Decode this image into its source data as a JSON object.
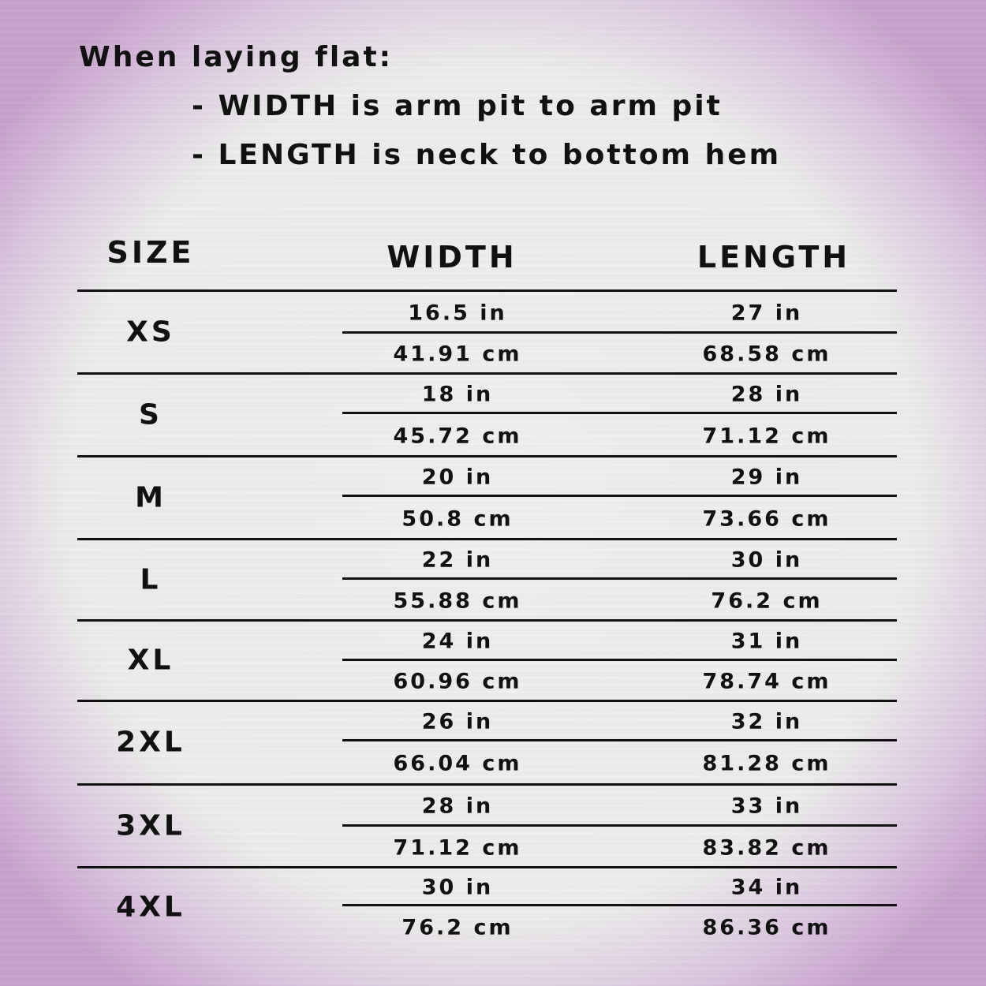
{
  "intro": {
    "title": "When laying flat:",
    "lines": [
      "- WIDTH is arm pit to arm pit",
      "- LENGTH is neck to bottom hem"
    ]
  },
  "table": {
    "headers": {
      "size": "SIZE",
      "width": "WIDTH",
      "length": "LENGTH"
    },
    "rows": [
      {
        "size": "XS",
        "width_in": "16.5 in",
        "width_cm": "41.91 cm",
        "length_in": "27 in",
        "length_cm": "68.58 cm"
      },
      {
        "size": "S",
        "width_in": "18 in",
        "width_cm": "45.72 cm",
        "length_in": "28 in",
        "length_cm": "71.12 cm"
      },
      {
        "size": "M",
        "width_in": "20 in",
        "width_cm": "50.8 cm",
        "length_in": "29 in",
        "length_cm": "73.66 cm"
      },
      {
        "size": "L",
        "width_in": "22 in",
        "width_cm": "55.88 cm",
        "length_in": "30 in",
        "length_cm": "76.2 cm"
      },
      {
        "size": "XL",
        "width_in": "24 in",
        "width_cm": "60.96 cm",
        "length_in": "31 in",
        "length_cm": "78.74 cm"
      },
      {
        "size": "2XL",
        "width_in": "26 in",
        "width_cm": "66.04 cm",
        "length_in": "32 in",
        "length_cm": "81.28 cm"
      },
      {
        "size": "3XL",
        "width_in": "28 in",
        "width_cm": "71.12 cm",
        "length_in": "33 in",
        "length_cm": "83.82 cm"
      },
      {
        "size": "4XL",
        "width_in": "30 in",
        "width_cm": "76.2 cm",
        "length_in": "34 in",
        "length_cm": "86.36 cm"
      }
    ]
  }
}
